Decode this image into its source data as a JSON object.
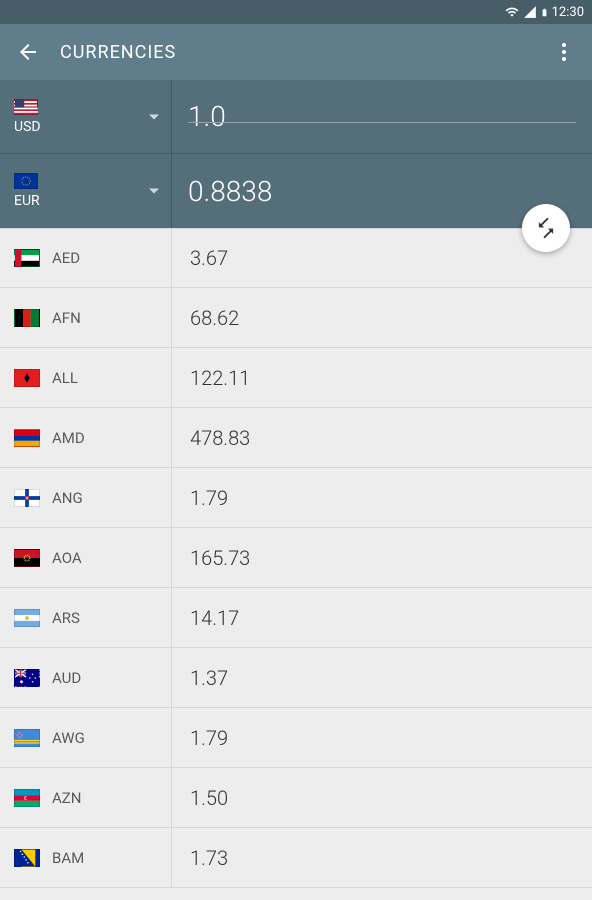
{
  "statusbar": {
    "time": "12:30"
  },
  "appbar": {
    "title": "CURRENCIES"
  },
  "converter": {
    "from": {
      "code": "USD",
      "value": "1.0",
      "flag_class": "f-usd"
    },
    "to": {
      "code": "EUR",
      "value": "0.8838",
      "flag_class": "f-eur"
    }
  },
  "currencies": [
    {
      "code": "AED",
      "value": "3.67",
      "flag_class": "f-aed"
    },
    {
      "code": "AFN",
      "value": "68.62",
      "flag_class": "f-afn"
    },
    {
      "code": "ALL",
      "value": "122.11",
      "flag_class": "f-all"
    },
    {
      "code": "AMD",
      "value": "478.83",
      "flag_class": "f-amd"
    },
    {
      "code": "ANG",
      "value": "1.79",
      "flag_class": "f-ang"
    },
    {
      "code": "AOA",
      "value": "165.73",
      "flag_class": "f-aoa"
    },
    {
      "code": "ARS",
      "value": "14.17",
      "flag_class": "f-ars"
    },
    {
      "code": "AUD",
      "value": "1.37",
      "flag_class": "f-aud"
    },
    {
      "code": "AWG",
      "value": "1.79",
      "flag_class": "f-awg"
    },
    {
      "code": "AZN",
      "value": "1.50",
      "flag_class": "f-azn"
    },
    {
      "code": "BAM",
      "value": "1.73",
      "flag_class": "f-bam"
    }
  ],
  "colors": {
    "statusbar_bg": "#475e68",
    "appbar_bg": "#607d8b",
    "converter_bg": "#546e7a",
    "list_bg": "#ededed",
    "divider": "#d7d7d7",
    "text_primary": "#333333",
    "text_secondary": "#5a5a5a"
  }
}
